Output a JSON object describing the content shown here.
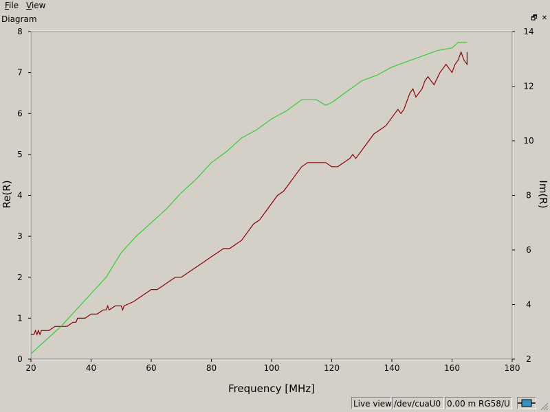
{
  "menubar": {
    "file": {
      "accel": "F",
      "rest": "ile"
    },
    "view": {
      "accel": "V",
      "rest": "iew"
    }
  },
  "dock": {
    "title": "Diagram",
    "float_glyph": "🗗",
    "close_glyph": "✕"
  },
  "status": {
    "mode": "Live view",
    "device": "/dev/cuaU0",
    "cable": "0.00 m RG58/U"
  },
  "icons": [
    "float-icon",
    "close-icon",
    "cable-icon",
    "size-grip-icon"
  ],
  "colors": {
    "background": "#d4d0c8",
    "re_series": "#8b0000",
    "im_series": "#32cd32"
  },
  "chart_data": {
    "type": "line",
    "xlabel": "Frequency [MHz]",
    "ylabel": "Re(R)",
    "y2label": "Im(R)",
    "xlim": [
      20,
      180
    ],
    "ylim": [
      0,
      8
    ],
    "y2lim": [
      2,
      14
    ],
    "xticks": [
      20,
      40,
      60,
      80,
      100,
      120,
      140,
      160,
      180
    ],
    "yticks": [
      0,
      1,
      2,
      3,
      4,
      5,
      6,
      7,
      8
    ],
    "y2ticks": [
      2,
      4,
      6,
      8,
      10,
      12,
      14
    ],
    "grid": false,
    "series": [
      {
        "axis": "left",
        "color": "#8b0000",
        "x": [
          20,
          21,
          21.5,
          22,
          22.5,
          23,
          23.5,
          24,
          26,
          28,
          30,
          32,
          34,
          35,
          35.5,
          36,
          38,
          40,
          42,
          44,
          45,
          45.5,
          46,
          48,
          50,
          50.5,
          51,
          54,
          56,
          58,
          60,
          62,
          64,
          66,
          68,
          70,
          72,
          74,
          76,
          78,
          80,
          82,
          84,
          86,
          88,
          90,
          92,
          94,
          96,
          98,
          100,
          102,
          104,
          106,
          108,
          110,
          112,
          113,
          114,
          116,
          118,
          120,
          122,
          124,
          126,
          127,
          128,
          130,
          132,
          134,
          136,
          138,
          140,
          142,
          143,
          144,
          146,
          147,
          148,
          150,
          151,
          152,
          153,
          154,
          156,
          157,
          158,
          159,
          160,
          161,
          162,
          163,
          164,
          165,
          165
        ],
        "y": [
          0.6,
          0.6,
          0.7,
          0.6,
          0.7,
          0.6,
          0.7,
          0.7,
          0.7,
          0.8,
          0.8,
          0.8,
          0.9,
          0.9,
          1.0,
          1.0,
          1.0,
          1.1,
          1.1,
          1.2,
          1.2,
          1.3,
          1.2,
          1.3,
          1.3,
          1.2,
          1.3,
          1.4,
          1.5,
          1.6,
          1.7,
          1.7,
          1.8,
          1.9,
          2.0,
          2.0,
          2.1,
          2.2,
          2.3,
          2.4,
          2.5,
          2.6,
          2.7,
          2.7,
          2.8,
          2.9,
          3.1,
          3.3,
          3.4,
          3.6,
          3.8,
          4.0,
          4.1,
          4.3,
          4.5,
          4.7,
          4.8,
          4.8,
          4.8,
          4.8,
          4.8,
          4.7,
          4.7,
          4.8,
          4.9,
          5.0,
          4.9,
          5.1,
          5.3,
          5.5,
          5.6,
          5.7,
          5.9,
          6.1,
          6.0,
          6.1,
          6.5,
          6.6,
          6.4,
          6.6,
          6.8,
          6.9,
          6.8,
          6.7,
          7.0,
          7.1,
          7.2,
          7.1,
          7.0,
          7.2,
          7.3,
          7.5,
          7.3,
          7.2,
          7.5
        ]
      },
      {
        "axis": "right",
        "color": "#32cd32",
        "x": [
          20,
          25,
          30,
          35,
          40,
          45,
          50,
          55,
          60,
          65,
          70,
          75,
          80,
          85,
          90,
          95,
          100,
          105,
          110,
          115,
          118,
          120,
          125,
          130,
          135,
          140,
          145,
          150,
          155,
          160,
          162,
          165
        ],
        "y": [
          2.2,
          2.7,
          3.2,
          3.8,
          4.4,
          5.0,
          5.9,
          6.5,
          7.0,
          7.5,
          8.1,
          8.6,
          9.2,
          9.6,
          10.1,
          10.4,
          10.8,
          11.1,
          11.5,
          11.5,
          11.3,
          11.4,
          11.8,
          12.2,
          12.4,
          12.7,
          12.9,
          13.1,
          13.3,
          13.4,
          13.6,
          13.6
        ]
      }
    ]
  }
}
